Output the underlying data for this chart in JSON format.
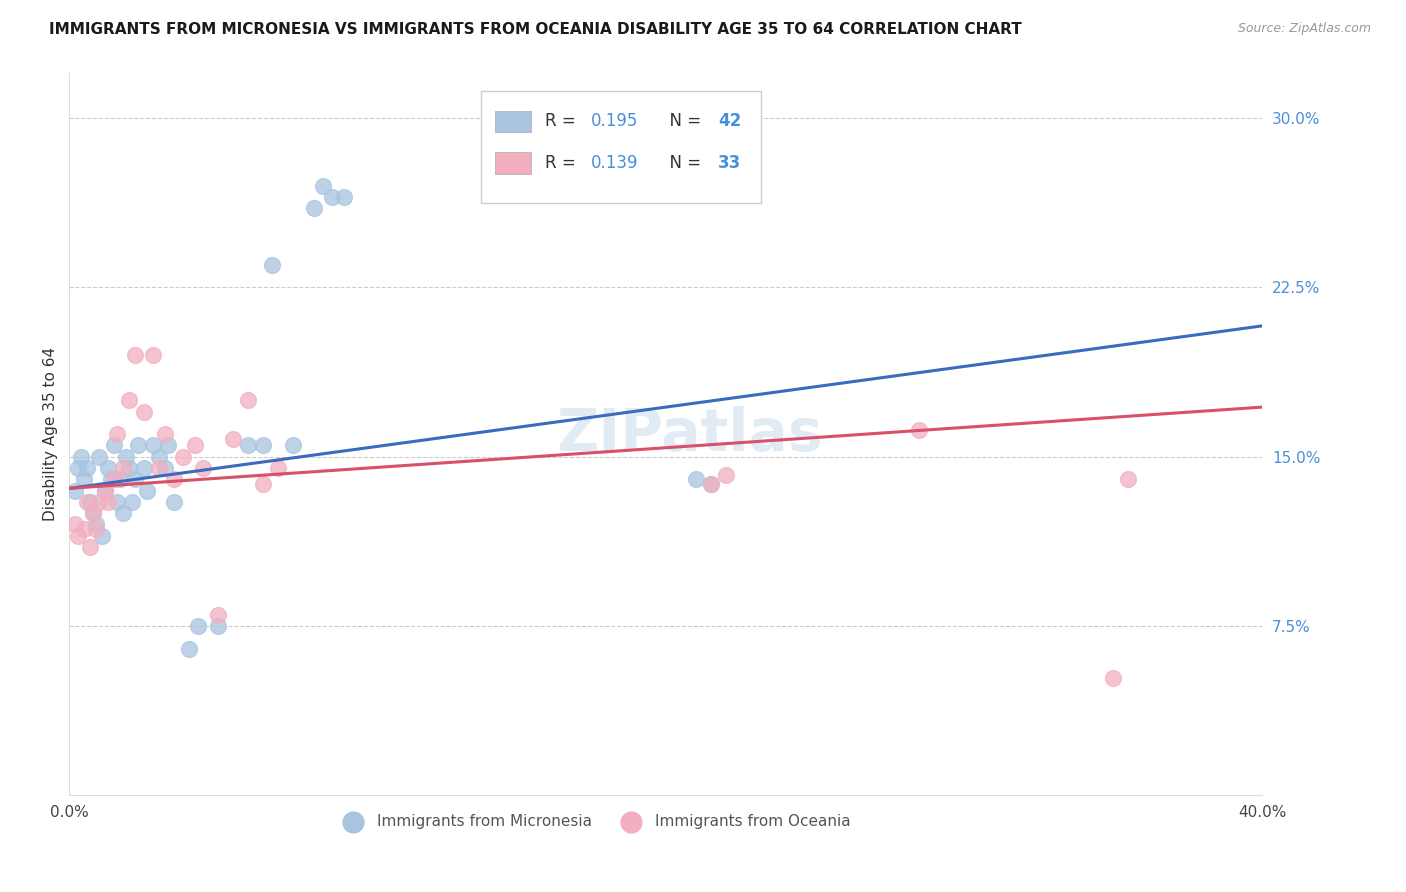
{
  "title": "IMMIGRANTS FROM MICRONESIA VS IMMIGRANTS FROM OCEANIA DISABILITY AGE 35 TO 64 CORRELATION CHART",
  "source": "Source: ZipAtlas.com",
  "ylabel": "Disability Age 35 to 64",
  "xlim": [
    0.0,
    0.4
  ],
  "ylim": [
    0.0,
    0.32
  ],
  "yticks_right": [
    0.075,
    0.15,
    0.225,
    0.3
  ],
  "yticklabels_right": [
    "7.5%",
    "15.0%",
    "22.5%",
    "30.0%"
  ],
  "blue_color": "#a8c4e0",
  "pink_color": "#f2afc0",
  "blue_line_color": "#3a6bbf",
  "pink_line_color": "#d9506a",
  "watermark": "ZIPatlas",
  "blue_x": [
    0.002,
    0.003,
    0.004,
    0.005,
    0.006,
    0.007,
    0.008,
    0.009,
    0.01,
    0.011,
    0.012,
    0.013,
    0.014,
    0.015,
    0.016,
    0.017,
    0.018,
    0.019,
    0.02,
    0.021,
    0.022,
    0.023,
    0.025,
    0.026,
    0.028,
    0.03,
    0.032,
    0.033,
    0.035,
    0.04,
    0.043,
    0.05,
    0.06,
    0.065,
    0.068,
    0.075,
    0.082,
    0.085,
    0.088,
    0.092,
    0.21,
    0.215
  ],
  "blue_y": [
    0.135,
    0.145,
    0.15,
    0.14,
    0.145,
    0.13,
    0.125,
    0.12,
    0.15,
    0.115,
    0.135,
    0.145,
    0.14,
    0.155,
    0.13,
    0.14,
    0.125,
    0.15,
    0.145,
    0.13,
    0.14,
    0.155,
    0.145,
    0.135,
    0.155,
    0.15,
    0.145,
    0.155,
    0.13,
    0.065,
    0.075,
    0.075,
    0.155,
    0.155,
    0.235,
    0.155,
    0.26,
    0.27,
    0.265,
    0.265,
    0.14,
    0.138
  ],
  "pink_x": [
    0.002,
    0.003,
    0.005,
    0.006,
    0.007,
    0.008,
    0.009,
    0.01,
    0.012,
    0.013,
    0.015,
    0.016,
    0.018,
    0.02,
    0.022,
    0.025,
    0.028,
    0.03,
    0.032,
    0.035,
    0.038,
    0.042,
    0.045,
    0.05,
    0.055,
    0.06,
    0.065,
    0.07,
    0.215,
    0.22,
    0.285,
    0.35,
    0.355
  ],
  "pink_y": [
    0.12,
    0.115,
    0.118,
    0.13,
    0.11,
    0.125,
    0.118,
    0.13,
    0.135,
    0.13,
    0.14,
    0.16,
    0.145,
    0.175,
    0.195,
    0.17,
    0.195,
    0.145,
    0.16,
    0.14,
    0.15,
    0.155,
    0.145,
    0.08,
    0.158,
    0.175,
    0.138,
    0.145,
    0.138,
    0.142,
    0.162,
    0.052,
    0.14
  ],
  "blue_trend_x": [
    0.0,
    0.4
  ],
  "blue_trend_y": [
    0.136,
    0.208
  ],
  "pink_trend_x": [
    0.0,
    0.4
  ],
  "pink_trend_y": [
    0.136,
    0.172
  ]
}
